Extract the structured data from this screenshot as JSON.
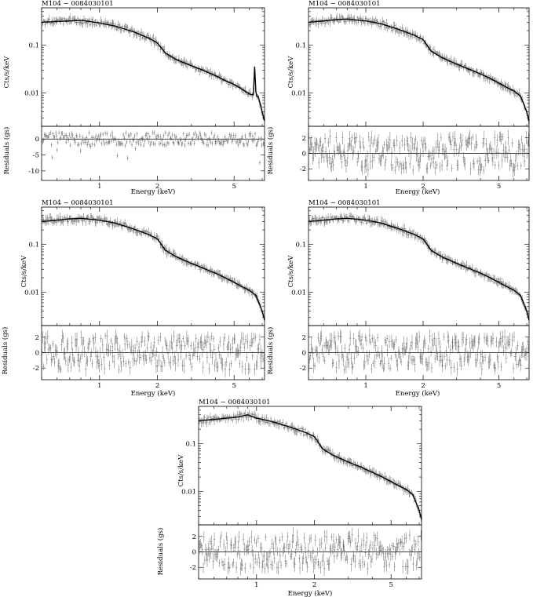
{
  "chart_data": [
    {
      "type": "scatter",
      "title": "M104 − 0084030101",
      "xlabel": "Energy (keV)",
      "ylabel_top": "Cts/s/keV",
      "ylabel_bottom": "Residuals (gs)",
      "x_scale": "log",
      "y_scale_top": "log",
      "xlim": [
        0.5,
        7.2
      ],
      "ylim_top": [
        0.002,
        0.6
      ],
      "ylim_bottom": [
        -13,
        4
      ],
      "x_ticks": [
        1,
        2,
        5
      ],
      "y_ticks_top": [
        0.1,
        0.01
      ],
      "y_ticks_bottom": [
        0,
        -5,
        -10
      ],
      "model": [
        [
          0.5,
          0.3
        ],
        [
          0.6,
          0.31
        ],
        [
          0.7,
          0.32
        ],
        [
          0.8,
          0.33
        ],
        [
          1.0,
          0.29
        ],
        [
          1.2,
          0.25
        ],
        [
          1.5,
          0.19
        ],
        [
          1.8,
          0.14
        ],
        [
          2.0,
          0.11
        ],
        [
          2.2,
          0.068
        ],
        [
          2.5,
          0.05
        ],
        [
          3.0,
          0.037
        ],
        [
          3.5,
          0.029
        ],
        [
          4.0,
          0.023
        ],
        [
          4.5,
          0.018
        ],
        [
          5.0,
          0.015
        ],
        [
          5.5,
          0.012
        ],
        [
          6.0,
          0.0095
        ],
        [
          6.3,
          0.009
        ],
        [
          6.4,
          0.038
        ],
        [
          6.5,
          0.009
        ],
        [
          6.7,
          0.008
        ],
        [
          7.0,
          0.004
        ],
        [
          7.2,
          0.0026
        ]
      ],
      "residual_ylim_style": "wide"
    },
    {
      "type": "scatter",
      "title": "M104 − 0084030101",
      "xlabel": "Energy (keV)",
      "ylabel_top": "Cts/s/keV",
      "ylabel_bottom": "Residuals (gs)",
      "x_scale": "log",
      "y_scale_top": "log",
      "xlim": [
        0.5,
        7.2
      ],
      "ylim_top": [
        0.002,
        0.6
      ],
      "ylim_bottom": [
        -3.5,
        3.5
      ],
      "x_ticks": [
        1,
        2,
        5
      ],
      "y_ticks_top": [
        0.1,
        0.01
      ],
      "y_ticks_bottom": [
        2,
        0,
        -2
      ],
      "model": [
        [
          0.5,
          0.3
        ],
        [
          0.6,
          0.32
        ],
        [
          0.7,
          0.34
        ],
        [
          0.8,
          0.35
        ],
        [
          1.0,
          0.32
        ],
        [
          1.2,
          0.28
        ],
        [
          1.5,
          0.21
        ],
        [
          1.8,
          0.16
        ],
        [
          2.0,
          0.13
        ],
        [
          2.2,
          0.075
        ],
        [
          2.5,
          0.055
        ],
        [
          3.0,
          0.04
        ],
        [
          3.5,
          0.031
        ],
        [
          4.0,
          0.025
        ],
        [
          4.5,
          0.02
        ],
        [
          5.0,
          0.016
        ],
        [
          5.5,
          0.013
        ],
        [
          6.0,
          0.011
        ],
        [
          6.5,
          0.0085
        ],
        [
          7.0,
          0.004
        ],
        [
          7.2,
          0.0026
        ]
      ]
    },
    {
      "type": "scatter",
      "title": "M104 − 0084030101",
      "xlabel": "Energy (keV)",
      "ylabel_top": "Cts/s/keV",
      "ylabel_bottom": "Residuals (gs)",
      "x_scale": "log",
      "y_scale_top": "log",
      "xlim": [
        0.5,
        7.2
      ],
      "ylim_top": [
        0.002,
        0.6
      ],
      "ylim_bottom": [
        -3.5,
        3.5
      ],
      "x_ticks": [
        1,
        2,
        5
      ],
      "y_ticks_top": [
        0.1,
        0.01
      ],
      "y_ticks_bottom": [
        2,
        0,
        -2
      ],
      "model": [
        [
          0.5,
          0.3
        ],
        [
          0.6,
          0.32
        ],
        [
          0.7,
          0.34
        ],
        [
          0.8,
          0.35
        ],
        [
          1.0,
          0.32
        ],
        [
          1.2,
          0.28
        ],
        [
          1.5,
          0.21
        ],
        [
          1.8,
          0.16
        ],
        [
          2.0,
          0.13
        ],
        [
          2.2,
          0.075
        ],
        [
          2.5,
          0.055
        ],
        [
          3.0,
          0.04
        ],
        [
          3.5,
          0.031
        ],
        [
          4.0,
          0.025
        ],
        [
          4.5,
          0.02
        ],
        [
          5.0,
          0.016
        ],
        [
          5.5,
          0.013
        ],
        [
          6.0,
          0.011
        ],
        [
          6.5,
          0.0085
        ],
        [
          7.0,
          0.004
        ],
        [
          7.2,
          0.0026
        ]
      ]
    },
    {
      "type": "scatter",
      "title": "M104 − 0084030101",
      "xlabel": "Energy (keV)",
      "ylabel_top": "Cts/s/keV",
      "ylabel_bottom": "Residuals (gs)",
      "x_scale": "log",
      "y_scale_top": "log",
      "xlim": [
        0.5,
        7.2
      ],
      "ylim_top": [
        0.002,
        0.6
      ],
      "ylim_bottom": [
        -3.5,
        3.5
      ],
      "x_ticks": [
        1,
        2,
        5
      ],
      "y_ticks_top": [
        0.1,
        0.01
      ],
      "y_ticks_bottom": [
        2,
        0,
        -2
      ],
      "model": [
        [
          0.5,
          0.3
        ],
        [
          0.6,
          0.32
        ],
        [
          0.7,
          0.34
        ],
        [
          0.8,
          0.35
        ],
        [
          1.0,
          0.32
        ],
        [
          1.2,
          0.28
        ],
        [
          1.5,
          0.21
        ],
        [
          1.8,
          0.16
        ],
        [
          2.0,
          0.13
        ],
        [
          2.2,
          0.075
        ],
        [
          2.5,
          0.055
        ],
        [
          3.0,
          0.04
        ],
        [
          3.5,
          0.031
        ],
        [
          4.0,
          0.025
        ],
        [
          4.5,
          0.02
        ],
        [
          5.0,
          0.016
        ],
        [
          5.5,
          0.013
        ],
        [
          6.0,
          0.011
        ],
        [
          6.5,
          0.0085
        ],
        [
          7.0,
          0.004
        ],
        [
          7.2,
          0.0026
        ]
      ]
    },
    {
      "type": "scatter",
      "title": "M104 − 0084030101",
      "xlabel": "Energy (keV)",
      "ylabel_top": "Cts/s/keV",
      "ylabel_bottom": "Residuals (gs)",
      "x_scale": "log",
      "y_scale_top": "log",
      "xlim": [
        0.5,
        7.2
      ],
      "ylim_top": [
        0.002,
        0.6
      ],
      "ylim_bottom": [
        -3.5,
        3.5
      ],
      "x_ticks": [
        1,
        2,
        5
      ],
      "y_ticks_top": [
        0.1,
        0.01
      ],
      "y_ticks_bottom": [
        2,
        0,
        -2
      ],
      "model": [
        [
          0.5,
          0.3
        ],
        [
          0.6,
          0.32
        ],
        [
          0.7,
          0.34
        ],
        [
          0.8,
          0.36
        ],
        [
          0.9,
          0.4
        ],
        [
          1.0,
          0.34
        ],
        [
          1.2,
          0.29
        ],
        [
          1.5,
          0.22
        ],
        [
          1.8,
          0.17
        ],
        [
          2.0,
          0.14
        ],
        [
          2.2,
          0.078
        ],
        [
          2.5,
          0.057
        ],
        [
          3.0,
          0.041
        ],
        [
          3.5,
          0.032
        ],
        [
          4.0,
          0.025
        ],
        [
          4.5,
          0.02
        ],
        [
          5.0,
          0.016
        ],
        [
          5.5,
          0.013
        ],
        [
          6.0,
          0.011
        ],
        [
          6.5,
          0.0085
        ],
        [
          7.0,
          0.004
        ],
        [
          7.2,
          0.0026
        ]
      ]
    }
  ]
}
